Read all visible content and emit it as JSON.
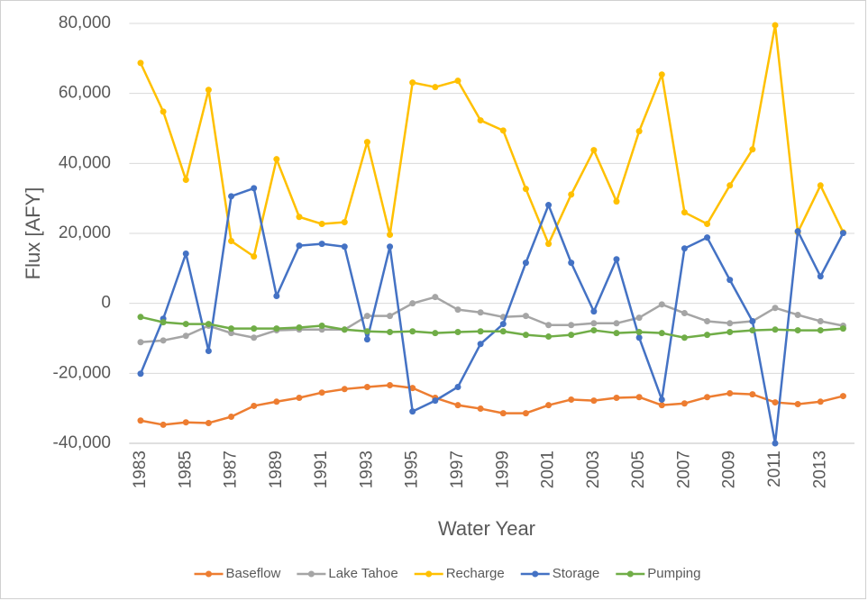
{
  "chart_data": {
    "type": "line",
    "x_label": "Water Year",
    "y_label": "Flux [AFY]",
    "categories": [
      "1983",
      null,
      "1985",
      null,
      "1987",
      null,
      "1989",
      null,
      "1991",
      null,
      "1993",
      null,
      "1995",
      null,
      "1997",
      null,
      "1999",
      null,
      "2001",
      null,
      "2003",
      null,
      "2005",
      null,
      "2007",
      null,
      "2009",
      null,
      "2011",
      null,
      "2013",
      null
    ],
    "ylim": [
      -40000,
      80000
    ],
    "yticks": [
      {
        "value": -40000,
        "label": "-40,000"
      },
      {
        "value": -20000,
        "label": "-20,000"
      },
      0,
      {
        "value": 20000,
        "label": "20,000"
      },
      {
        "value": 40000,
        "label": "40,000"
      },
      {
        "value": 60000,
        "label": "60,000"
      },
      {
        "value": 80000,
        "label": "80,000"
      }
    ],
    "grid": true,
    "legend": "bottom",
    "series": [
      {
        "name": "Baseflow",
        "color": "#ED7D31",
        "values": [
          -33500,
          -34700,
          -34000,
          -34200,
          -32400,
          -29300,
          -28100,
          -27000,
          -25500,
          -24500,
          -23900,
          -23400,
          -24200,
          -27000,
          -29100,
          -30100,
          -31400,
          -31400,
          -29100,
          -27500,
          -27800,
          -27000,
          -26800,
          -29100,
          -28600,
          -26800,
          -25700,
          -26000,
          -28300,
          -28800,
          -28100,
          -26500
        ]
      },
      {
        "name": "Lake Tahoe",
        "color": "#A5A5A5",
        "values": [
          -11100,
          -10600,
          -9300,
          -6400,
          -8500,
          -9800,
          -7700,
          -7500,
          -7500,
          -7500,
          -3600,
          -3600,
          0,
          1800,
          -1800,
          -2600,
          -3900,
          -3600,
          -6200,
          -6200,
          -5700,
          -5700,
          -4100,
          -300,
          -2800,
          -5100,
          -5700,
          -5100,
          -1300,
          -3300,
          -5100,
          -6400
        ]
      },
      {
        "name": "Recharge",
        "color": "#FFC000",
        "values": [
          68700,
          54800,
          35300,
          61000,
          17800,
          13400,
          41200,
          24700,
          22700,
          23200,
          46100,
          19600,
          63100,
          61800,
          63600,
          52300,
          49400,
          32700,
          17000,
          31100,
          43800,
          29100,
          49200,
          65400,
          26000,
          22700,
          33700,
          44000,
          79500,
          20300,
          33700,
          20300
        ]
      },
      {
        "name": "Storage",
        "color": "#4472C4",
        "values": [
          -20100,
          -4400,
          14200,
          -13600,
          30600,
          32900,
          2100,
          16500,
          17000,
          16200,
          -10300,
          16200,
          -30900,
          -27800,
          -23900,
          -11600,
          -5900,
          11600,
          28100,
          11600,
          -2300,
          12600,
          -9800,
          -27500,
          15700,
          18800,
          6700,
          -5100,
          -40000,
          20600,
          7700,
          20100
        ]
      },
      {
        "name": "Pumping",
        "color": "#70AD47",
        "values": [
          -3900,
          -5400,
          -5900,
          -5900,
          -7200,
          -7200,
          -7200,
          -6900,
          -6400,
          -7500,
          -8000,
          -8200,
          -8000,
          -8500,
          -8200,
          -8000,
          -8000,
          -9000,
          -9500,
          -9000,
          -7700,
          -8500,
          -8200,
          -8500,
          -9800,
          -9000,
          -8200,
          -7700,
          -7500,
          -7700,
          -7700,
          -7200
        ]
      }
    ]
  }
}
